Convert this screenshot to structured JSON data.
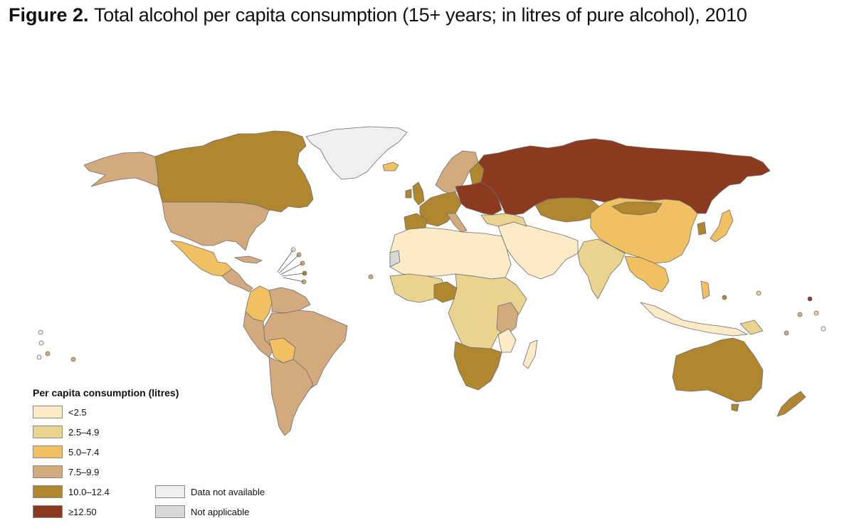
{
  "title": {
    "prefix": "Figure 2.",
    "text": "Total alcohol per capita consumption (15+ years; in litres of pure alcohol), 2010"
  },
  "colors": {
    "lt2_5": "#fdebc7",
    "c2_5_4_9": "#ead28f",
    "c5_0_7_4": "#f1c062",
    "c7_5_9_9": "#d2aa7d",
    "c10_0_12_4": "#b0862f",
    "ge12_5": "#8b3a1f",
    "no_data": "#eeefee",
    "not_applicable": "#d7d8da",
    "water": "#ffffff",
    "border": "#6d6d6d"
  },
  "legend": {
    "title": "Per capita consumption (litres)",
    "items": [
      {
        "label": "<2.5",
        "color": "#fdebc7"
      },
      {
        "label": "2.5–4.9",
        "color": "#ead28f"
      },
      {
        "label": "5.0–7.4",
        "color": "#f1c062"
      },
      {
        "label": "7.5–9.9",
        "color": "#d2aa7d"
      },
      {
        "label": "10.0–12.4",
        "color": "#b0862f"
      },
      {
        "label": "≥12.50",
        "color": "#8b3a1f"
      }
    ],
    "extra": [
      {
        "label": "Data not available",
        "color": "#eeefee"
      },
      {
        "label": "Not applicable",
        "color": "#d7d8da"
      }
    ]
  }
}
